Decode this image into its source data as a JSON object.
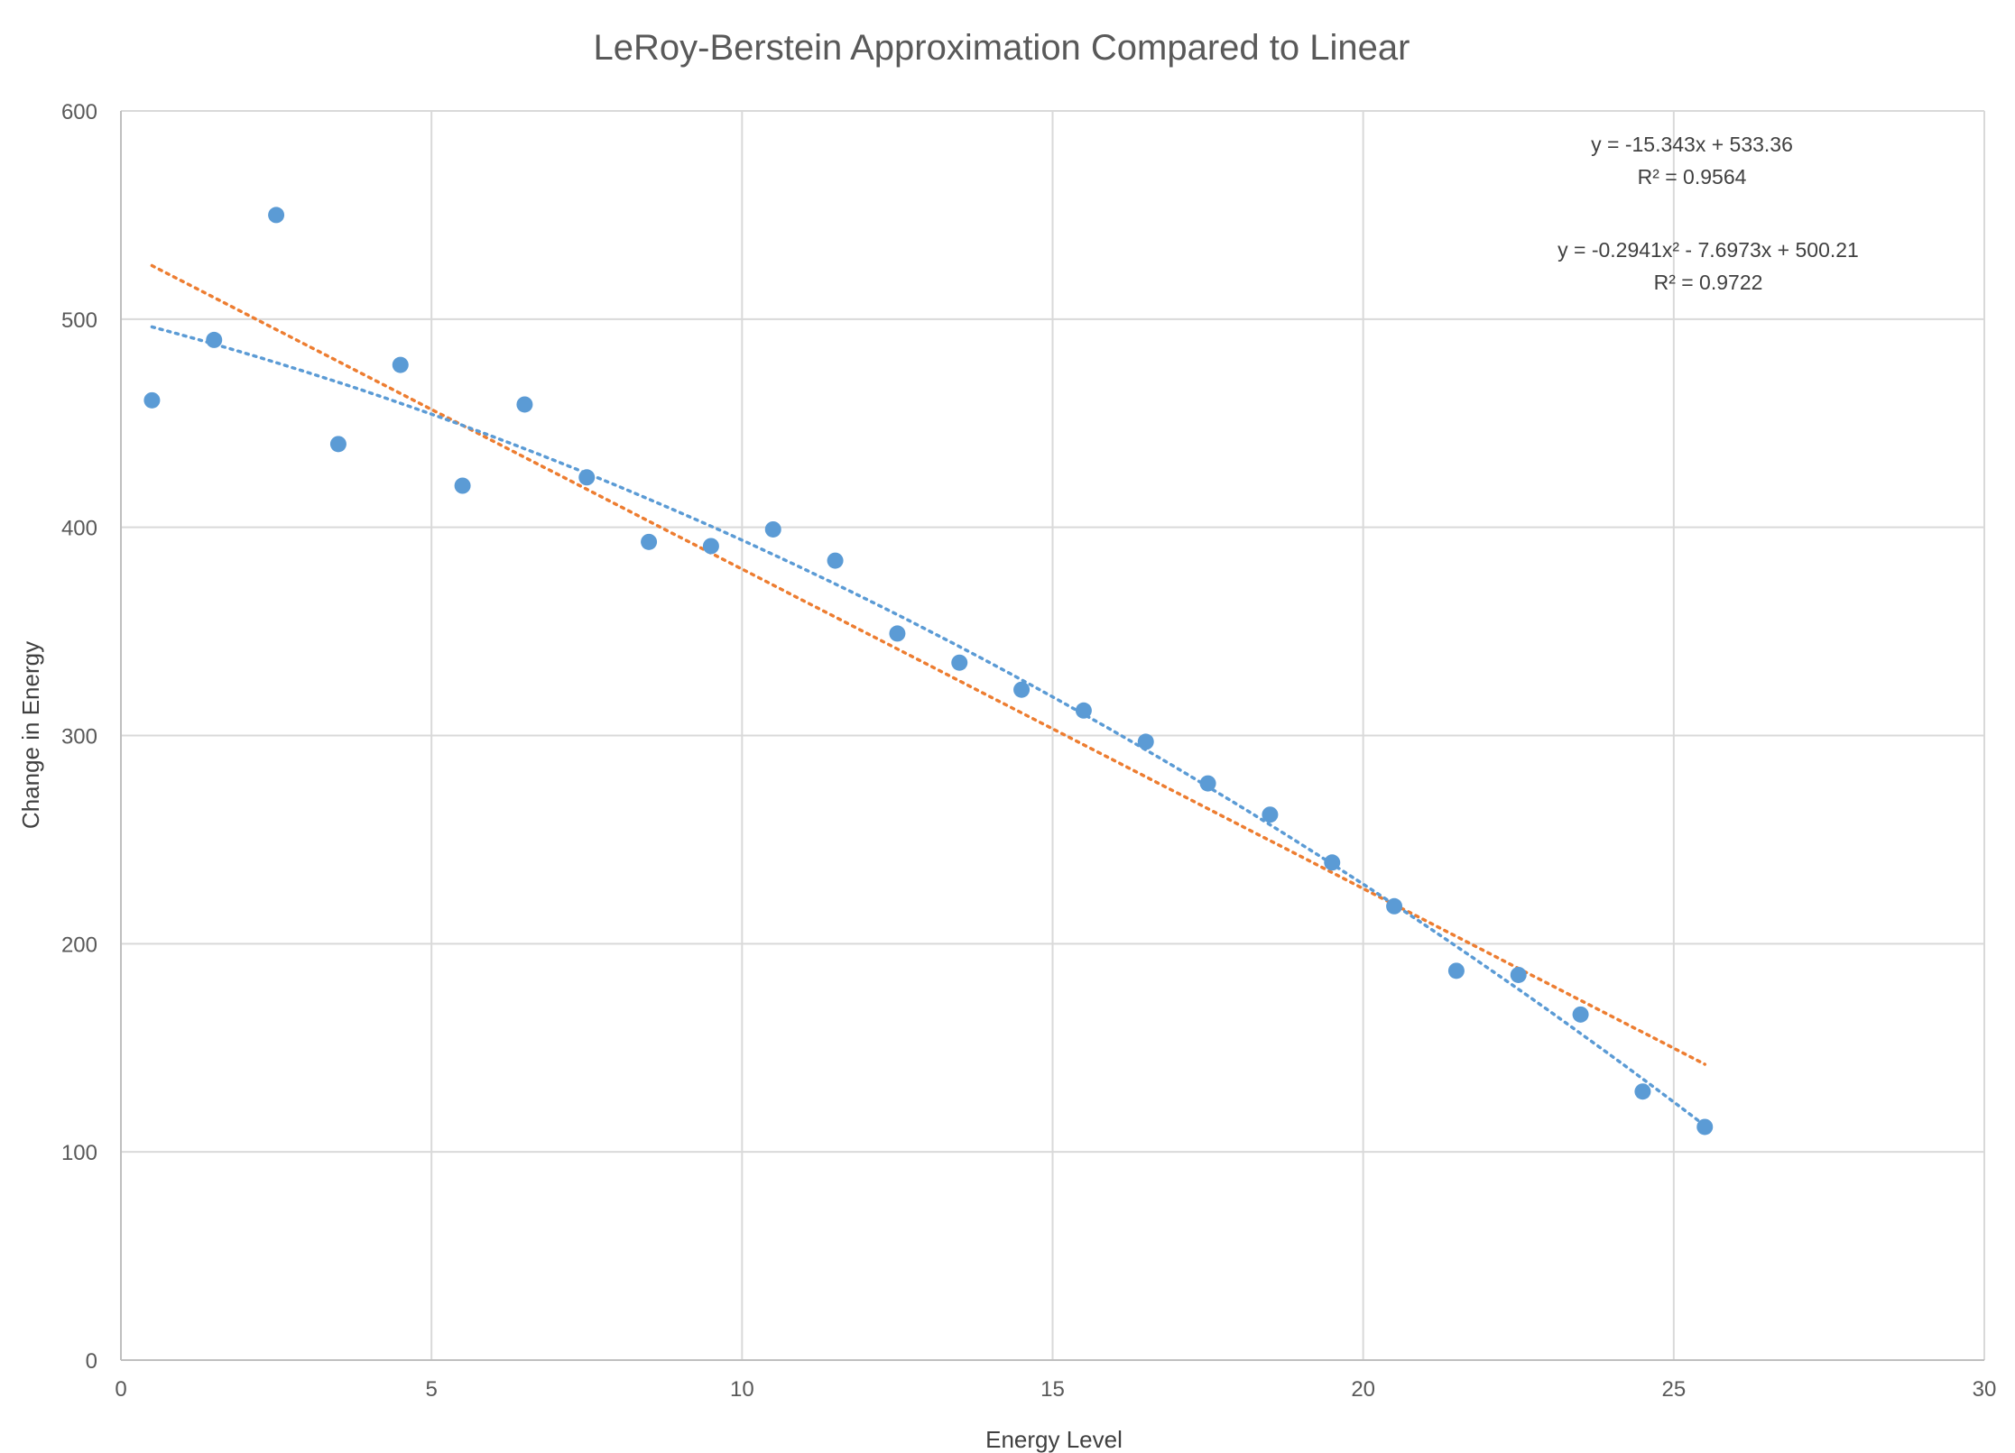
{
  "chart_data": {
    "type": "scatter",
    "title": "LeRoy-Berstein Approximation Compared to Linear",
    "xlabel": "Energy Level",
    "ylabel": "Change in Energy",
    "xlim": [
      0,
      30
    ],
    "ylim": [
      0,
      600
    ],
    "x_ticks": [
      "0",
      "5",
      "10",
      "15",
      "20",
      "25",
      "30"
    ],
    "y_ticks": [
      "0",
      "100",
      "200",
      "300",
      "400",
      "500",
      "600"
    ],
    "grid": true,
    "legend": "none",
    "colors": {
      "points": "#5b9bd5",
      "linear_trend": "#ed7d31",
      "poly_trend": "#5b9bd5"
    },
    "series": [
      {
        "x": [
          0.5,
          1.5,
          2.5,
          3.5,
          4.5,
          5.5,
          6.5,
          7.5,
          8.5,
          9.5,
          10.5,
          11.5,
          12.5,
          13.5,
          14.5,
          15.5,
          16.5,
          17.5,
          18.5,
          19.5,
          20.5,
          21.5,
          22.5,
          23.5,
          24.5,
          25.5
        ],
        "y": [
          461,
          490,
          550,
          440,
          478,
          420,
          459,
          424,
          393,
          391,
          399,
          384,
          349,
          335,
          322,
          312,
          297,
          277,
          262,
          239,
          218,
          187,
          185,
          166,
          129,
          112
        ]
      }
    ],
    "trendlines": [
      {
        "kind": "linear",
        "slope": -15.343,
        "intercept": 533.36,
        "x_range": [
          0.5,
          25.5
        ]
      },
      {
        "kind": "polynomial",
        "a": -0.2941,
        "b": -7.6973,
        "c": 500.21,
        "x_range": [
          0.5,
          25.5
        ]
      }
    ],
    "annotations": [
      "y = -15.343x + 533.36",
      "R² = 0.9564",
      "y = -0.2941x² - 7.6973x + 500.21",
      "R² = 0.9722"
    ]
  }
}
